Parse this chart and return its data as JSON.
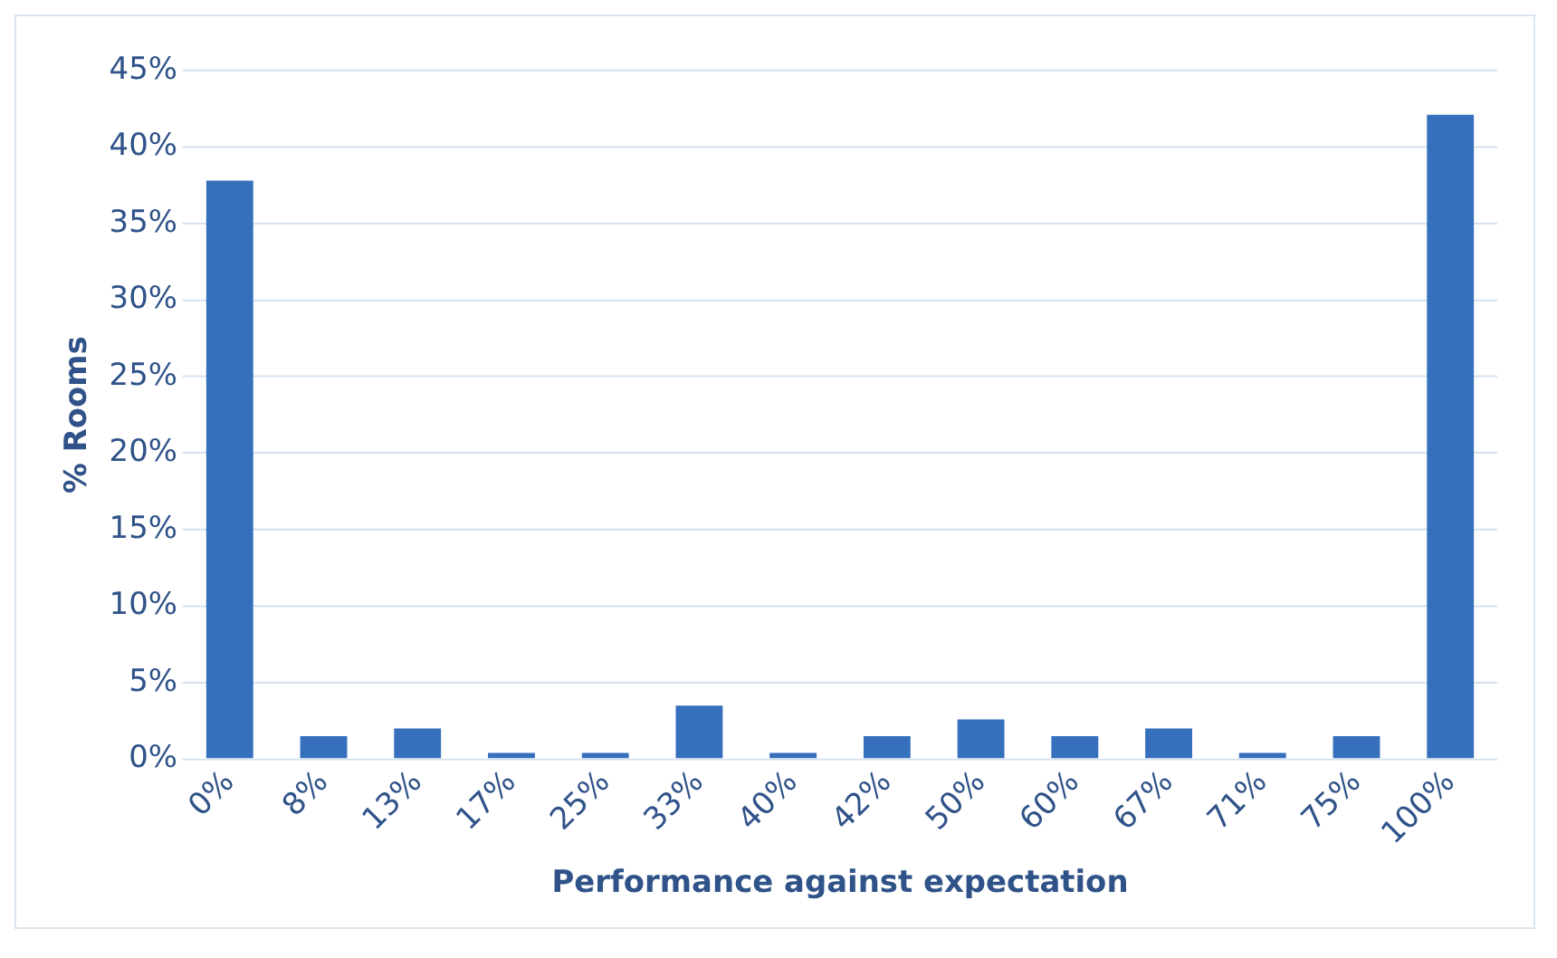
{
  "chart_data": {
    "type": "bar",
    "xlabel": "Performance against expectation",
    "ylabel": "% Rooms",
    "categories": [
      "0%",
      "8%",
      "13%",
      "17%",
      "25%",
      "33%",
      "40%",
      "42%",
      "50%",
      "60%",
      "67%",
      "71%",
      "75%",
      "100%"
    ],
    "values": [
      37.8,
      1.5,
      2.0,
      0.4,
      0.4,
      3.5,
      0.4,
      1.5,
      2.6,
      1.5,
      2.0,
      0.4,
      1.5,
      42.1
    ],
    "color": "#3670bd",
    "ylim": [
      0,
      45
    ],
    "yticks": [
      {
        "value": 0,
        "label": "0%"
      },
      {
        "value": 5,
        "label": "5%"
      },
      {
        "value": 10,
        "label": "10%"
      },
      {
        "value": 15,
        "label": "15%"
      },
      {
        "value": 20,
        "label": "20%"
      },
      {
        "value": 25,
        "label": "25%"
      },
      {
        "value": 30,
        "label": "30%"
      },
      {
        "value": 35,
        "label": "35%"
      },
      {
        "value": 40,
        "label": "40%"
      },
      {
        "value": 45,
        "label": "45%"
      }
    ],
    "grid": "y"
  }
}
